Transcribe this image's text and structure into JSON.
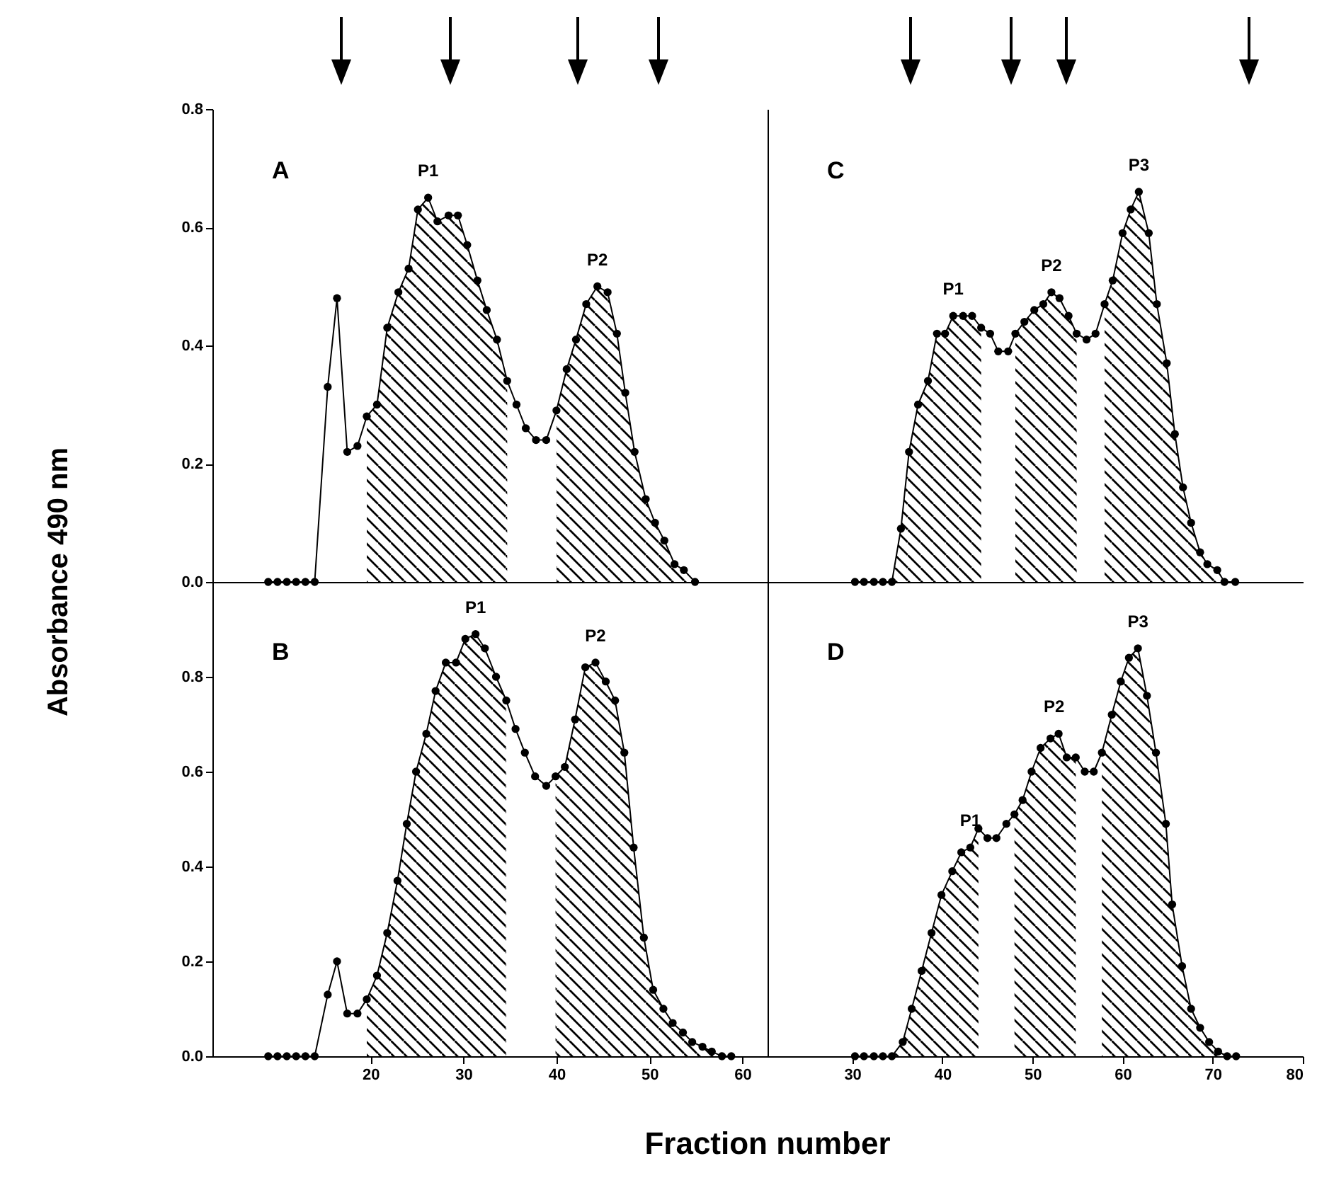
{
  "chart_data": [
    {
      "type": "line",
      "ylabel": "Absorbance 490 nm",
      "annotations": [
        "A",
        {
          "text": "P1",
          "x": 26.2,
          "y": 0.65
        },
        {
          "text": "P2",
          "x": 44.4,
          "y": 0.5
        }
      ],
      "x": [
        9,
        10,
        11,
        12,
        13,
        14,
        15.4,
        16.4,
        17.5,
        18.6,
        19.6,
        20.7,
        21.8,
        23.0,
        24.1,
        25.1,
        26.2,
        27.2,
        28.4,
        29.4,
        30.4,
        31.5,
        32.5,
        33.6,
        34.7,
        35.7,
        36.7,
        37.8,
        38.9,
        40.0,
        41.1,
        42.1,
        43.2,
        44.4,
        45.5,
        46.5,
        47.4,
        48.4,
        49.6,
        50.6,
        51.6,
        52.7,
        53.7,
        54.9
      ],
      "series": [
        {
          "color": "#000000",
          "marker": "circle",
          "values": [
            0,
            0,
            0,
            0,
            0,
            0,
            0.33,
            0.48,
            0.22,
            0.23,
            0.28,
            0.3,
            0.43,
            0.49,
            0.53,
            0.63,
            0.65,
            0.61,
            0.62,
            0.62,
            0.57,
            0.51,
            0.46,
            0.41,
            0.34,
            0.3,
            0.26,
            0.24,
            0.24,
            0.29,
            0.36,
            0.41,
            0.47,
            0.5,
            0.49,
            0.42,
            0.32,
            0.22,
            0.14,
            0.1,
            0.07,
            0.03,
            0.02,
            0
          ]
        },
        {
          "type": "area",
          "color": "#000000",
          "x": [
            19.6,
            20.7,
            21.8,
            23.0,
            24.1,
            25.1,
            26.2,
            27.2,
            28.4,
            29.4,
            30.4,
            31.5,
            32.5,
            33.6,
            34.7
          ],
          "values": [
            0.28,
            0.3,
            0.43,
            0.49,
            0.53,
            0.63,
            0.65,
            0.61,
            0.62,
            0.62,
            0.57,
            0.51,
            0.46,
            0.41,
            0.34
          ]
        },
        {
          "type": "area",
          "color": "#000000",
          "x": [
            40.0,
            41.1,
            42.1,
            43.2,
            44.4,
            45.5,
            46.5,
            47.4,
            48.4,
            49.6,
            50.6,
            51.6,
            52.7,
            53.7,
            54.9
          ],
          "values": [
            0.29,
            0.36,
            0.41,
            0.47,
            0.5,
            0.49,
            0.42,
            0.32,
            0.22,
            0.14,
            0.1,
            0.07,
            0.03,
            0.02,
            0
          ]
        }
      ],
      "xlim": [
        3,
        62.7
      ],
      "ylim": [
        0,
        0.8
      ],
      "yticks": [
        {
          "value": 0,
          "label": "0.0"
        },
        0.2,
        0.4,
        0.6,
        0.8
      ],
      "tick_labels": "y",
      "line_style": "solid"
    },
    {
      "type": "line",
      "xlabel": "Fraction number",
      "annotations": [
        "B",
        {
          "text": "P1",
          "x": 31.3,
          "y": 0.89
        },
        {
          "text": "P2",
          "x": 44.2,
          "y": 0.83
        }
      ],
      "x": [
        9,
        10,
        11,
        12,
        13,
        14,
        15.4,
        16.4,
        17.5,
        18.6,
        19.6,
        20.7,
        21.8,
        22.9,
        23.9,
        24.9,
        26.0,
        27.0,
        28.1,
        29.2,
        30.2,
        31.3,
        32.3,
        33.5,
        34.6,
        35.6,
        36.6,
        37.7,
        38.9,
        39.9,
        40.9,
        42.0,
        43.1,
        44.2,
        45.3,
        46.3,
        47.3,
        48.3,
        49.4,
        50.4,
        51.5,
        52.5,
        53.6,
        54.6,
        55.7,
        56.7,
        57.8,
        58.8
      ],
      "series": [
        {
          "color": "#000000",
          "marker": "circle",
          "values": [
            0,
            0,
            0,
            0,
            0,
            0,
            0.13,
            0.2,
            0.09,
            0.09,
            0.12,
            0.17,
            0.26,
            0.37,
            0.49,
            0.6,
            0.68,
            0.77,
            0.83,
            0.83,
            0.88,
            0.89,
            0.86,
            0.8,
            0.75,
            0.69,
            0.64,
            0.59,
            0.57,
            0.59,
            0.61,
            0.71,
            0.82,
            0.83,
            0.79,
            0.75,
            0.64,
            0.44,
            0.25,
            0.14,
            0.1,
            0.07,
            0.05,
            0.03,
            0.02,
            0.01,
            0,
            0
          ]
        },
        {
          "type": "area",
          "color": "#000000",
          "x": [
            19.6,
            20.7,
            21.8,
            22.9,
            23.9,
            24.9,
            26.0,
            27.0,
            28.1,
            29.2,
            30.2,
            31.3,
            32.3,
            33.5,
            34.6
          ],
          "values": [
            0.12,
            0.17,
            0.26,
            0.37,
            0.49,
            0.6,
            0.68,
            0.77,
            0.83,
            0.83,
            0.88,
            0.89,
            0.86,
            0.8,
            0.75
          ]
        },
        {
          "type": "area",
          "color": "#000000",
          "x": [
            39.9,
            40.9,
            42.0,
            43.1,
            44.2,
            45.3,
            46.3,
            47.3,
            48.3,
            49.4,
            50.4,
            51.5,
            52.5,
            53.6,
            54.6,
            55.7,
            56.7,
            57.8
          ],
          "values": [
            0.59,
            0.61,
            0.71,
            0.82,
            0.83,
            0.79,
            0.75,
            0.64,
            0.44,
            0.25,
            0.14,
            0.1,
            0.07,
            0.05,
            0.03,
            0.02,
            0.01,
            0
          ]
        }
      ],
      "xlim": [
        3,
        62.7
      ],
      "ylim": [
        0,
        1
      ],
      "xticks": [
        20,
        30,
        40,
        50,
        60
      ],
      "yticks": [
        {
          "value": 0,
          "label": "0.0"
        },
        0.2,
        0.4,
        0.6,
        0.8
      ],
      "line_style": "solid"
    },
    {
      "type": "line",
      "annotations": [
        "C",
        {
          "text": "P1",
          "x": 41.2,
          "y": 0.45
        },
        {
          "text": "P2",
          "x": 52.1,
          "y": 0.49
        },
        {
          "text": "P3",
          "x": 61.8,
          "y": 0.66
        }
      ],
      "x": [
        30.3,
        31.3,
        32.4,
        33.4,
        34.4,
        35.4,
        36.3,
        37.3,
        38.4,
        39.4,
        40.3,
        41.2,
        42.3,
        43.3,
        44.3,
        45.3,
        46.2,
        47.3,
        48.1,
        49.1,
        50.2,
        51.2,
        52.1,
        53.0,
        54.0,
        54.9,
        56.0,
        57.0,
        58.0,
        58.9,
        60.0,
        60.9,
        61.8,
        62.9,
        63.8,
        64.9,
        65.8,
        66.7,
        67.6,
        68.6,
        69.4,
        70.5,
        71.3,
        72.5
      ],
      "series": [
        {
          "color": "#000000",
          "marker": "circle",
          "values": [
            0,
            0,
            0,
            0,
            0,
            0.09,
            0.22,
            0.3,
            0.34,
            0.42,
            0.42,
            0.45,
            0.45,
            0.45,
            0.43,
            0.42,
            0.39,
            0.39,
            0.42,
            0.44,
            0.46,
            0.47,
            0.49,
            0.48,
            0.45,
            0.42,
            0.41,
            0.42,
            0.47,
            0.51,
            0.59,
            0.63,
            0.66,
            0.59,
            0.47,
            0.37,
            0.25,
            0.16,
            0.1,
            0.05,
            0.03,
            0.02,
            0,
            0
          ]
        },
        {
          "type": "area",
          "color": "#000000",
          "x": [
            34.4,
            35.4,
            36.3,
            37.3,
            38.4,
            39.4,
            40.3,
            41.2,
            42.3,
            43.3,
            44.3
          ],
          "values": [
            0,
            0.09,
            0.22,
            0.3,
            0.34,
            0.42,
            0.42,
            0.45,
            0.45,
            0.45,
            0.43
          ]
        },
        {
          "type": "area",
          "color": "#000000",
          "x": [
            48.1,
            49.1,
            50.2,
            51.2,
            52.1,
            53.0,
            54.0,
            54.9
          ],
          "values": [
            0.42,
            0.44,
            0.46,
            0.47,
            0.49,
            0.48,
            0.45,
            0.42
          ]
        },
        {
          "type": "area",
          "color": "#000000",
          "x": [
            58.0,
            58.9,
            60.0,
            60.9,
            61.8,
            62.9,
            63.8,
            64.9,
            65.8,
            66.7,
            67.6,
            68.6,
            69.4,
            70.5,
            71.3
          ],
          "values": [
            0.47,
            0.51,
            0.59,
            0.63,
            0.66,
            0.59,
            0.47,
            0.37,
            0.25,
            0.16,
            0.1,
            0.05,
            0.03,
            0.02,
            0
          ]
        }
      ],
      "xlim": [
        20.6,
        80
      ],
      "ylim": [
        0,
        0.8
      ],
      "tick_labels": false,
      "line_style": "solid"
    },
    {
      "type": "line",
      "annotations": [
        "D",
        {
          "text": "P1",
          "x": 43.1,
          "y": 0.44
        },
        {
          "text": "P2",
          "x": 52.4,
          "y": 0.68
        },
        {
          "text": "P3",
          "x": 61.7,
          "y": 0.86
        }
      ],
      "x": [
        30.3,
        31.3,
        32.4,
        33.4,
        34.4,
        35.6,
        36.6,
        37.7,
        38.8,
        39.9,
        41.1,
        42.1,
        43.1,
        44.0,
        45.0,
        46.0,
        47.1,
        48.0,
        48.9,
        49.9,
        50.9,
        52.0,
        52.9,
        53.8,
        54.8,
        55.8,
        56.8,
        57.7,
        58.8,
        59.8,
        60.7,
        61.7,
        62.7,
        63.7,
        64.8,
        65.5,
        66.6,
        67.6,
        68.6,
        69.6,
        70.6,
        71.6,
        72.6
      ],
      "series": [
        {
          "color": "#000000",
          "marker": "circle",
          "values": [
            0,
            0,
            0,
            0,
            0,
            0.03,
            0.1,
            0.18,
            0.26,
            0.34,
            0.39,
            0.43,
            0.44,
            0.48,
            0.46,
            0.46,
            0.49,
            0.51,
            0.54,
            0.6,
            0.65,
            0.67,
            0.68,
            0.63,
            0.63,
            0.6,
            0.6,
            0.64,
            0.72,
            0.79,
            0.84,
            0.86,
            0.76,
            0.64,
            0.49,
            0.32,
            0.19,
            0.1,
            0.06,
            0.03,
            0.01,
            0,
            0
          ]
        },
        {
          "type": "area",
          "color": "#000000",
          "x": [
            34.4,
            35.6,
            36.6,
            37.7,
            38.8,
            39.9,
            41.1,
            42.1,
            43.1,
            44.0
          ],
          "values": [
            0,
            0.03,
            0.1,
            0.18,
            0.26,
            0.34,
            0.39,
            0.43,
            0.44,
            0.48
          ]
        },
        {
          "type": "area",
          "color": "#000000",
          "x": [
            48.0,
            48.9,
            49.9,
            50.9,
            52.0,
            52.9,
            53.8,
            54.8
          ],
          "values": [
            0.51,
            0.54,
            0.6,
            0.65,
            0.67,
            0.68,
            0.63,
            0.63
          ]
        },
        {
          "type": "area",
          "color": "#000000",
          "x": [
            57.7,
            58.8,
            59.8,
            60.7,
            61.7,
            62.7,
            63.7,
            64.8,
            65.5,
            66.6,
            67.6,
            68.6,
            69.6,
            70.6,
            71.6
          ],
          "values": [
            0.64,
            0.72,
            0.79,
            0.84,
            0.86,
            0.76,
            0.64,
            0.49,
            0.32,
            0.19,
            0.1,
            0.06,
            0.03,
            0.01,
            0
          ]
        }
      ],
      "xlim": [
        20.6,
        80
      ],
      "ylim": [
        0,
        1
      ],
      "xticks": [
        30,
        40,
        50,
        60,
        70,
        80
      ],
      "tick_labels": "x",
      "line_style": "solid"
    }
  ]
}
